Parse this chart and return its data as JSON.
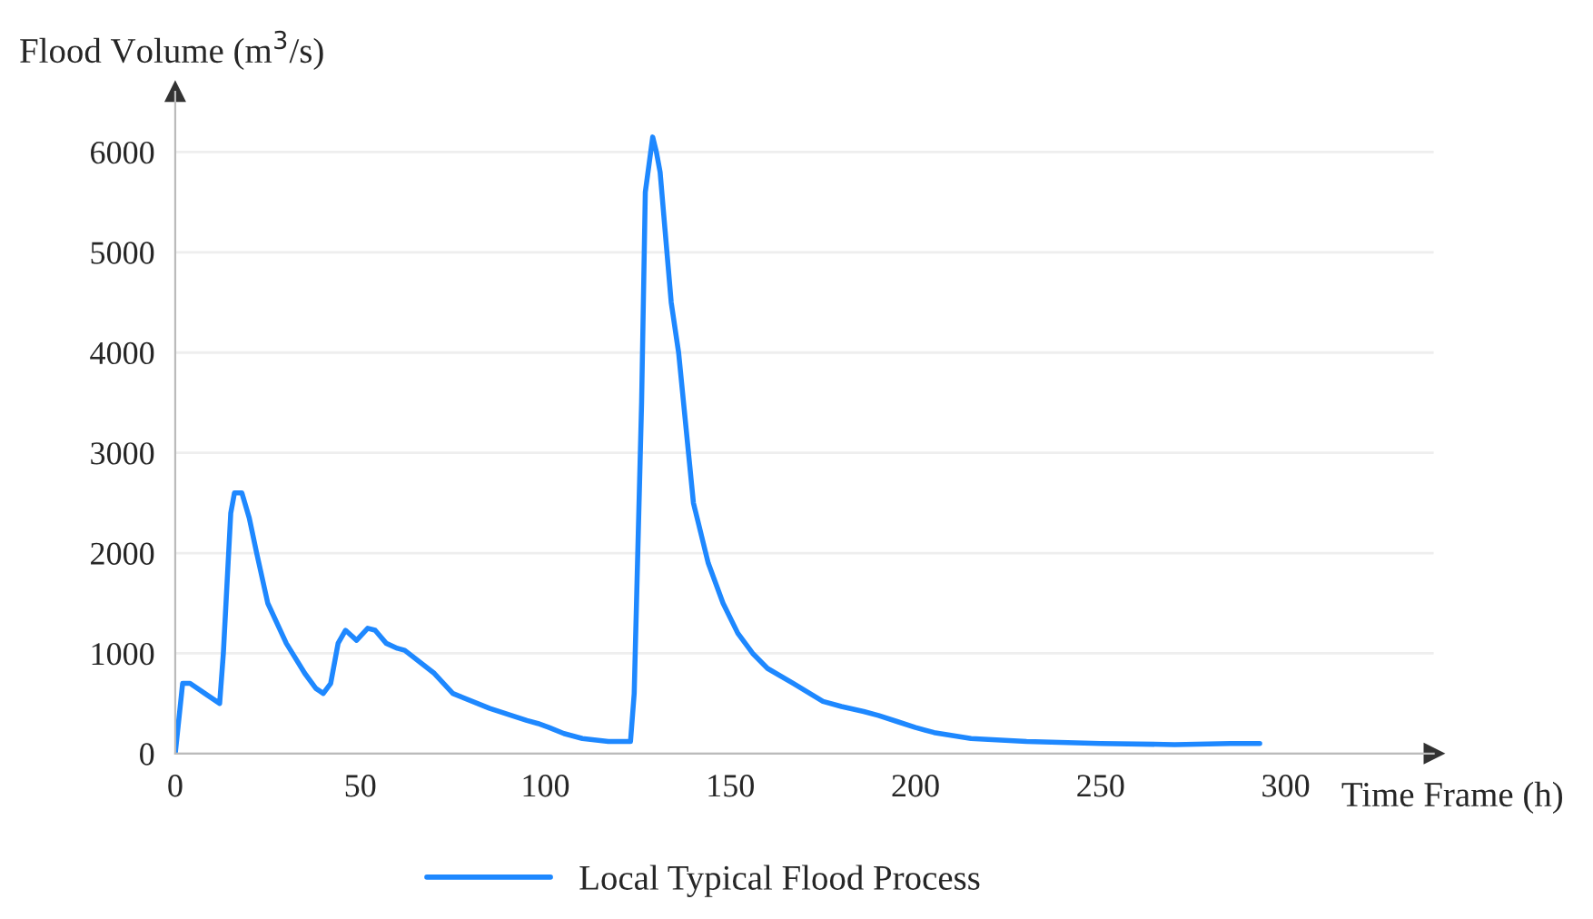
{
  "chart_data": {
    "type": "line",
    "xlabel": "Time Frame (h)",
    "ylabel": "Flood Volume (m$^{3}$/s)",
    "xlim": [
      0,
      340
    ],
    "ylim": [
      0,
      6600
    ],
    "xticks": [
      0,
      50,
      100,
      150,
      200,
      250,
      300
    ],
    "yticks": [
      0,
      1000,
      2000,
      3000,
      4000,
      5000,
      6000
    ],
    "grid": "y",
    "legend": "bottom",
    "marker": "none",
    "line_style": "solid",
    "series": [
      {
        "name": "Local Typical Flood Process",
        "color": "#1e88ff",
        "x": [
          0,
          2,
          4,
          8,
          12,
          13,
          15,
          16,
          18,
          20,
          22,
          25,
          30,
          35,
          38,
          40,
          42,
          44,
          46,
          49,
          52,
          54,
          57,
          60,
          62,
          70,
          75,
          85,
          95,
          98,
          101,
          105,
          110,
          117,
          123,
          124,
          126,
          127,
          129,
          130,
          131,
          134,
          136,
          140,
          144,
          148,
          152,
          156,
          160,
          167,
          175,
          180,
          186,
          190,
          195,
          200,
          205,
          215,
          230,
          250,
          270,
          285,
          293
        ],
        "values": [
          0,
          700,
          700,
          600,
          500,
          1000,
          2400,
          2600,
          2600,
          2350,
          2000,
          1500,
          1100,
          800,
          650,
          600,
          700,
          1100,
          1230,
          1130,
          1250,
          1230,
          1100,
          1050,
          1030,
          800,
          600,
          450,
          330,
          300,
          260,
          200,
          150,
          120,
          120,
          600,
          3500,
          5600,
          6150,
          6000,
          5800,
          4500,
          4000,
          2500,
          1900,
          1500,
          1200,
          1000,
          850,
          700,
          520,
          470,
          420,
          380,
          320,
          260,
          210,
          150,
          120,
          100,
          90,
          100,
          100
        ]
      }
    ]
  }
}
